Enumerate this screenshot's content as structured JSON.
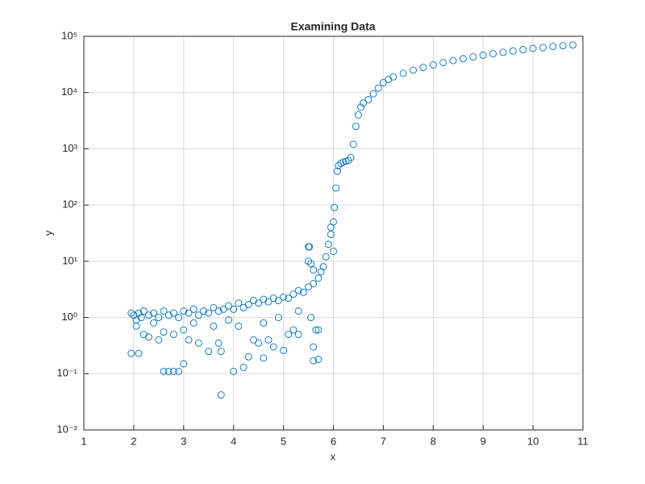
{
  "chart_data": {
    "type": "scatter",
    "title": "Examining Data",
    "x_label": "x",
    "y_label": "y",
    "log_y": true,
    "grid": true,
    "color": "#0072bd",
    "xlim": [
      1,
      11
    ],
    "xticks": [
      1,
      2,
      3,
      4,
      5,
      6,
      7,
      8,
      9,
      10,
      11
    ],
    "ylim": [
      0.01,
      100000
    ],
    "yticks": [
      {
        "value": 0.01,
        "label": "10⁻²"
      },
      {
        "value": 0.1,
        "label": "10⁻¹"
      },
      {
        "value": 1,
        "label": "10⁰"
      },
      {
        "value": 10,
        "label": "10¹"
      },
      {
        "value": 100,
        "label": "10²"
      },
      {
        "value": 1000,
        "label": "10³"
      },
      {
        "value": 10000,
        "label": "10⁴"
      },
      {
        "value": 100000,
        "label": "10⁵"
      }
    ],
    "x": [
      1.95,
      2.0,
      2.05,
      2.1,
      2.15,
      2.2,
      2.3,
      2.4,
      2.5,
      2.6,
      2.7,
      2.8,
      2.9,
      3.0,
      3.1,
      3.2,
      3.3,
      3.4,
      3.5,
      3.6,
      3.7,
      3.8,
      3.9,
      4.0,
      4.1,
      4.2,
      4.3,
      4.4,
      4.5,
      4.6,
      4.7,
      4.8,
      4.9,
      5.0,
      5.1,
      5.2,
      5.3,
      5.4,
      5.5,
      5.6,
      5.7,
      5.75,
      1.95,
      2.1,
      2.6,
      2.7,
      2.8,
      2.9,
      3.0,
      2.2,
      2.3,
      2.5,
      2.6,
      2.8,
      3.0,
      3.1,
      3.3,
      3.5,
      3.7,
      3.75,
      3.75,
      4.0,
      4.2,
      4.3,
      4.4,
      4.5,
      4.6,
      4.7,
      4.8,
      5.0,
      5.1,
      5.2,
      5.3,
      5.6,
      5.7,
      5.65,
      5.7,
      5.6,
      2.05,
      2.4,
      3.2,
      3.6,
      3.9,
      4.1,
      4.6,
      4.9,
      5.3,
      5.55,
      5.5,
      5.52,
      5.5,
      5.55,
      5.6,
      5.8,
      5.85,
      5.9,
      5.95,
      6.0,
      6.02,
      6.05,
      6.08,
      6.1,
      6.15,
      6.2,
      6.25,
      6.3,
      6.35,
      6.4,
      6.45,
      6.5,
      6.55,
      6.6,
      6.7,
      6.8,
      6.9,
      7.0,
      7.1,
      7.2,
      7.4,
      7.6,
      7.8,
      8.0,
      8.2,
      8.4,
      8.6,
      8.8,
      9.0,
      9.2,
      9.4,
      9.6,
      9.8,
      10.0,
      10.2,
      10.4,
      10.6,
      10.8,
      5.95,
      6.0
    ],
    "y": [
      1.2,
      1.1,
      0.9,
      1.2,
      1.0,
      1.3,
      1.1,
      1.2,
      1.0,
      1.3,
      1.1,
      1.2,
      1.0,
      1.3,
      1.2,
      1.4,
      1.1,
      1.3,
      1.2,
      1.5,
      1.3,
      1.4,
      1.6,
      1.4,
      1.8,
      1.5,
      1.7,
      2.0,
      1.8,
      2.1,
      1.9,
      2.2,
      2.0,
      2.3,
      2.2,
      2.6,
      3.0,
      2.8,
      3.5,
      4.0,
      5.0,
      6.5,
      0.23,
      0.23,
      0.11,
      0.11,
      0.11,
      0.11,
      0.15,
      0.5,
      0.45,
      0.4,
      0.55,
      0.5,
      0.6,
      0.4,
      0.35,
      0.25,
      0.35,
      0.042,
      0.25,
      0.11,
      0.13,
      0.2,
      0.4,
      0.35,
      0.19,
      0.4,
      0.3,
      0.26,
      0.5,
      0.6,
      0.5,
      0.3,
      0.18,
      0.6,
      0.6,
      0.17,
      0.7,
      0.8,
      0.8,
      0.7,
      0.9,
      0.7,
      0.8,
      1.0,
      1.3,
      1.0,
      18,
      18,
      10,
      9,
      7,
      8,
      12,
      20,
      30,
      50,
      90,
      200,
      400,
      500,
      550,
      580,
      600,
      620,
      700,
      1200,
      2500,
      4000,
      5500,
      6500,
      7500,
      9500,
      12000,
      15000,
      17000,
      19000,
      22000,
      25000,
      28000,
      31000,
      34000,
      37000,
      40000,
      43000,
      46000,
      49000,
      52000,
      55000,
      58000,
      61000,
      63000,
      66000,
      68000,
      70000,
      40,
      15
    ]
  }
}
